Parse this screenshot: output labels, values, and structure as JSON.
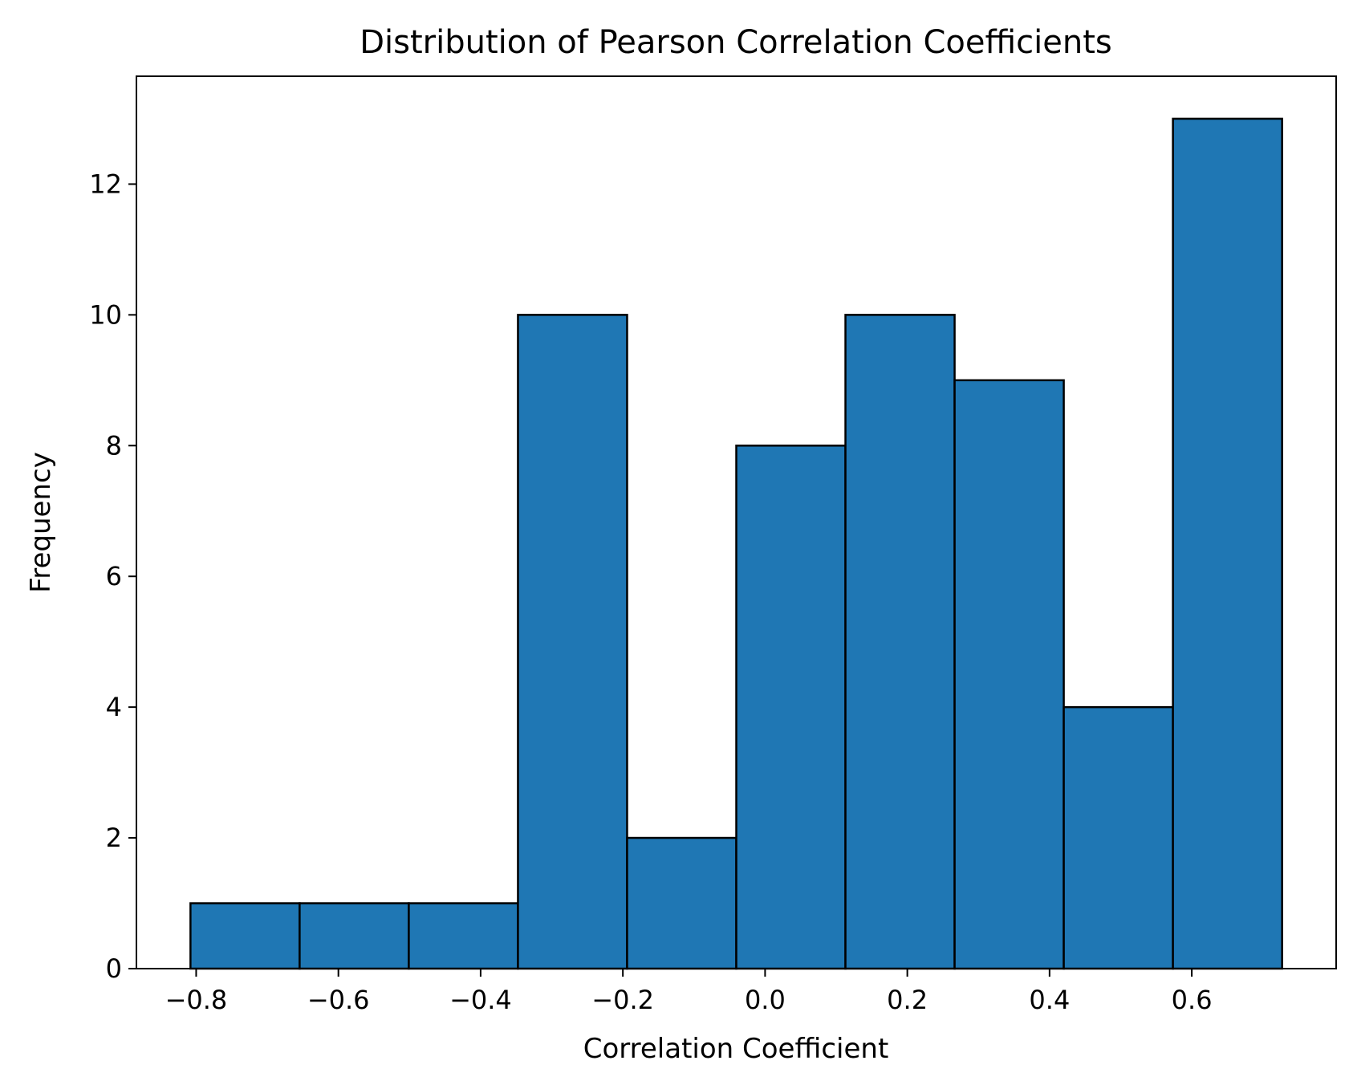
{
  "chart_data": {
    "type": "bar",
    "subtype": "histogram",
    "title": "Distribution of Pearson Correlation Coefficients",
    "xlabel": "Correlation Coefficient",
    "ylabel": "Frequency",
    "bin_edges": [
      -0.808,
      -0.6545,
      -0.501,
      -0.3475,
      -0.194,
      -0.0405,
      0.113,
      0.2665,
      0.42,
      0.5735,
      0.727
    ],
    "values": [
      1,
      1,
      1,
      10,
      2,
      8,
      10,
      9,
      4,
      13
    ],
    "xlim": [
      -0.884,
      0.803
    ],
    "ylim": [
      0,
      13.65
    ],
    "xticks": [
      -0.8,
      -0.6,
      -0.4,
      -0.2,
      0.0,
      0.2,
      0.4,
      0.6
    ],
    "xtick_labels": [
      "−0.8",
      "−0.6",
      "−0.4",
      "−0.2",
      "0.0",
      "0.2",
      "0.4",
      "0.6"
    ],
    "yticks": [
      0,
      2,
      4,
      6,
      8,
      10,
      12
    ],
    "ytick_labels": [
      "0",
      "2",
      "4",
      "6",
      "8",
      "10",
      "12"
    ],
    "bar_color": "#1f77b4",
    "edge_color": "#000000",
    "grid": false,
    "legend": "none"
  }
}
